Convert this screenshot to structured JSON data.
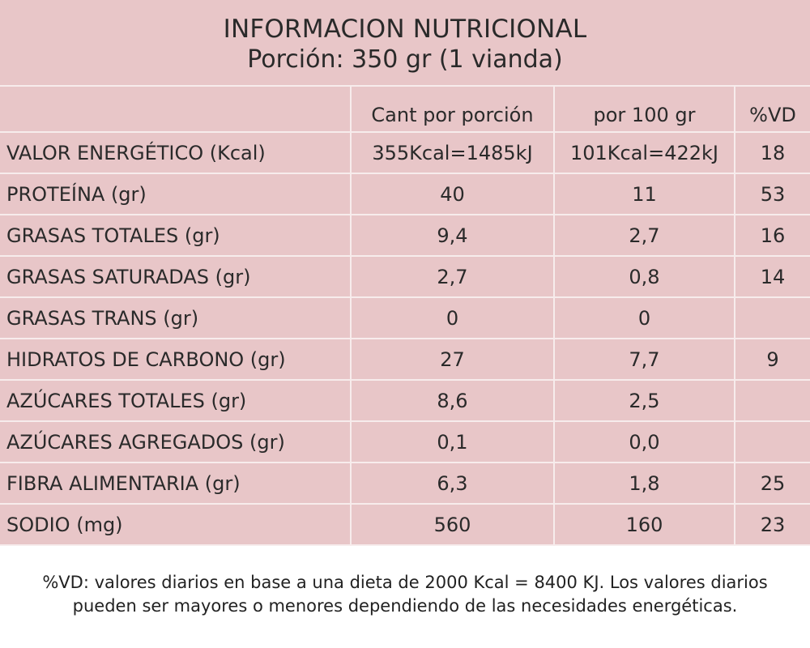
{
  "header": {
    "title": "INFORMACION NUTRICIONAL",
    "portion": "Porción: 350 gr (1 vianda)"
  },
  "columns": {
    "per_portion": "Cant por porción",
    "per_100g": "por 100 gr",
    "vd": "%VD"
  },
  "rows": [
    {
      "name": "VALOR ENERGÉTICO  (Kcal)",
      "per_portion": "355Kcal=1485kJ",
      "per_100g": "101Kcal=422kJ",
      "vd": "18"
    },
    {
      "name": "PROTEÍNA (gr)",
      "per_portion": "40",
      "per_100g": "11",
      "vd": "53"
    },
    {
      "name": "GRASAS TOTALES (gr)",
      "per_portion": "9,4",
      "per_100g": "2,7",
      "vd": "16"
    },
    {
      "name": "GRASAS SATURADAS (gr)",
      "per_portion": "2,7",
      "per_100g": "0,8",
      "vd": "14"
    },
    {
      "name": "GRASAS TRANS (gr)",
      "per_portion": "0",
      "per_100g": "0",
      "vd": ""
    },
    {
      "name": "HIDRATOS DE CARBONO (gr)",
      "per_portion": "27",
      "per_100g": "7,7",
      "vd": "9"
    },
    {
      "name": "AZÚCARES TOTALES (gr)",
      "per_portion": "8,6",
      "per_100g": "2,5",
      "vd": ""
    },
    {
      "name": "AZÚCARES AGREGADOS (gr)",
      "per_portion": "0,1",
      "per_100g": "0,0",
      "vd": ""
    },
    {
      "name": "FIBRA ALIMENTARIA (gr)",
      "per_portion": "6,3",
      "per_100g": "1,8",
      "vd": "25"
    },
    {
      "name": "SODIO (mg)",
      "per_portion": "560",
      "per_100g": "160",
      "vd": "23"
    }
  ],
  "footnote": {
    "line1": "%VD:  valores diarios en base a una dieta de 2000 Kcal = 8400 KJ. Los valores diarios",
    "line2": "pueden ser mayores o menores dependiendo de las necesidades energéticas."
  },
  "colors": {
    "background": "#e8c6c8",
    "grid": "#f7ecec",
    "text": "#2a2a2a"
  }
}
